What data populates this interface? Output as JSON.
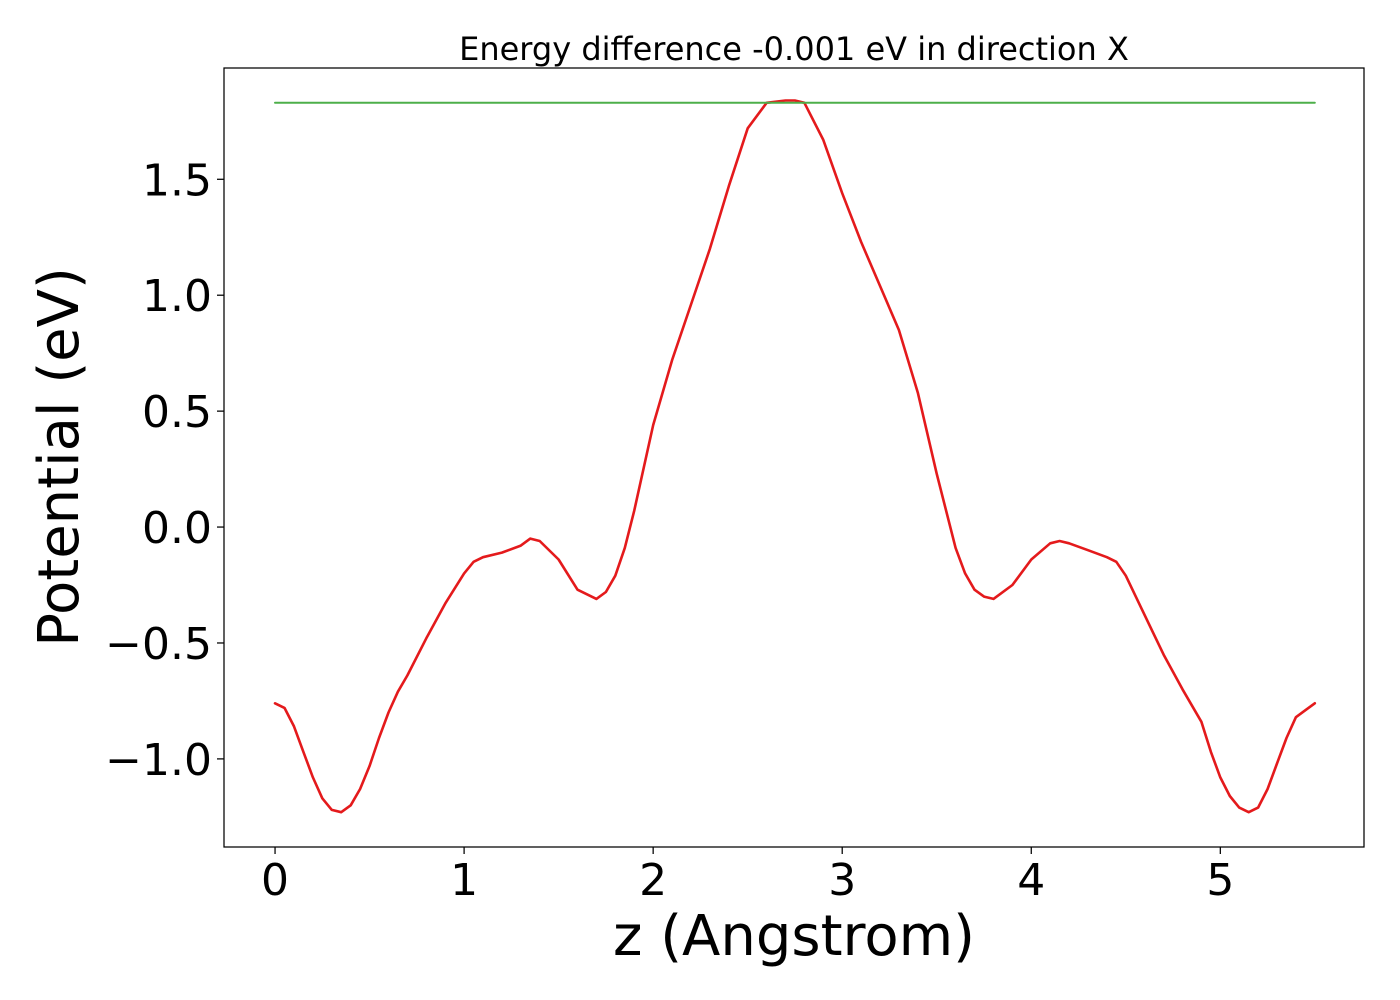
{
  "chart_data": {
    "type": "line",
    "title": "Energy difference -0.001 eV in direction X",
    "xlabel": "z (Angstrom)",
    "ylabel": "Potential (eV)",
    "xlim": [
      -0.27,
      5.76
    ],
    "ylim": [
      -1.38,
      1.98
    ],
    "grid": false,
    "legend": "none",
    "x_ticks": [
      0,
      1,
      2,
      3,
      4,
      5
    ],
    "x_tick_labels": [
      "0",
      "1",
      "2",
      "3",
      "4",
      "5"
    ],
    "y_ticks": [
      -1.0,
      -0.5,
      0.0,
      0.5,
      1.0,
      1.5
    ],
    "y_tick_labels": [
      "−1.0",
      "−0.5",
      "0.0",
      "0.5",
      "1.0",
      "1.5"
    ],
    "series": [
      {
        "color": "#e41a1c",
        "x": [
          0.0,
          0.05,
          0.1,
          0.15,
          0.2,
          0.25,
          0.3,
          0.35,
          0.4,
          0.45,
          0.5,
          0.55,
          0.6,
          0.65,
          0.7,
          0.8,
          0.9,
          1.0,
          1.05,
          1.1,
          1.2,
          1.3,
          1.35,
          1.4,
          1.5,
          1.6,
          1.7,
          1.75,
          1.8,
          1.85,
          1.9,
          2.0,
          2.1,
          2.2,
          2.3,
          2.4,
          2.5,
          2.6,
          2.7,
          2.75,
          2.8,
          2.9,
          3.0,
          3.1,
          3.2,
          3.3,
          3.4,
          3.5,
          3.6,
          3.65,
          3.7,
          3.75,
          3.8,
          3.9,
          4.0,
          4.1,
          4.15,
          4.2,
          4.3,
          4.4,
          4.45,
          4.5,
          4.6,
          4.7,
          4.8,
          4.9,
          4.95,
          5.0,
          5.05,
          5.1,
          5.15,
          5.2,
          5.25,
          5.3,
          5.35,
          5.4,
          5.45,
          5.5
        ],
        "y": [
          -0.76,
          -0.78,
          -0.86,
          -0.97,
          -1.08,
          -1.17,
          -1.22,
          -1.23,
          -1.2,
          -1.13,
          -1.03,
          -0.91,
          -0.8,
          -0.71,
          -0.64,
          -0.48,
          -0.33,
          -0.2,
          -0.15,
          -0.13,
          -0.11,
          -0.08,
          -0.05,
          -0.06,
          -0.14,
          -0.27,
          -0.31,
          -0.28,
          -0.21,
          -0.09,
          0.07,
          0.44,
          0.72,
          0.96,
          1.2,
          1.47,
          1.72,
          1.83,
          1.84,
          1.84,
          1.83,
          1.67,
          1.44,
          1.23,
          1.04,
          0.85,
          0.58,
          0.23,
          -0.09,
          -0.2,
          -0.27,
          -0.3,
          -0.31,
          -0.25,
          -0.14,
          -0.07,
          -0.06,
          -0.07,
          -0.1,
          -0.13,
          -0.15,
          -0.21,
          -0.38,
          -0.55,
          -0.7,
          -0.84,
          -0.97,
          -1.08,
          -1.16,
          -1.21,
          -1.23,
          -1.21,
          -1.13,
          -1.02,
          -0.91,
          -0.82,
          -0.79,
          -0.76
        ]
      },
      {
        "color": "#4daf4a",
        "x": [
          0.0,
          5.5
        ],
        "y": [
          1.83,
          1.83
        ]
      }
    ]
  }
}
